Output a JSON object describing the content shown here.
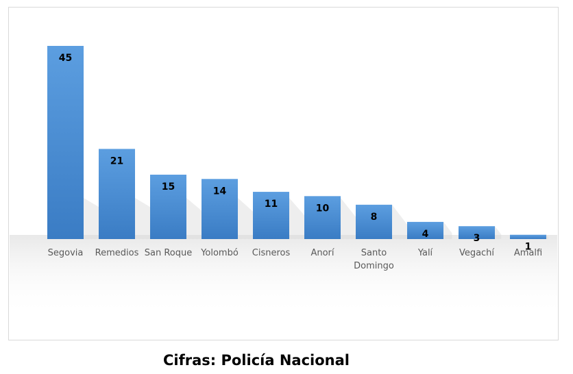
{
  "chart_data": {
    "type": "bar",
    "categories": [
      "Segovia",
      "Remedios",
      "San Roque",
      "Yolombó",
      "Cisneros",
      "Anorí",
      "Santo Domingo",
      "Yalí",
      "Vegachí",
      "Amalfi"
    ],
    "values": [
      45,
      21,
      15,
      14,
      11,
      10,
      8,
      4,
      3,
      1
    ],
    "title": "",
    "xlabel": "",
    "ylabel": "",
    "ylim": [
      0,
      45
    ],
    "grid": false,
    "legend": "none",
    "data_labels": true,
    "bar_color": "#4a8fd6",
    "bar_color_light": "#5c9ee0",
    "bar_color_dark": "#3a7cc4"
  },
  "caption": {
    "source": "Cifras: Policía Nacional"
  }
}
